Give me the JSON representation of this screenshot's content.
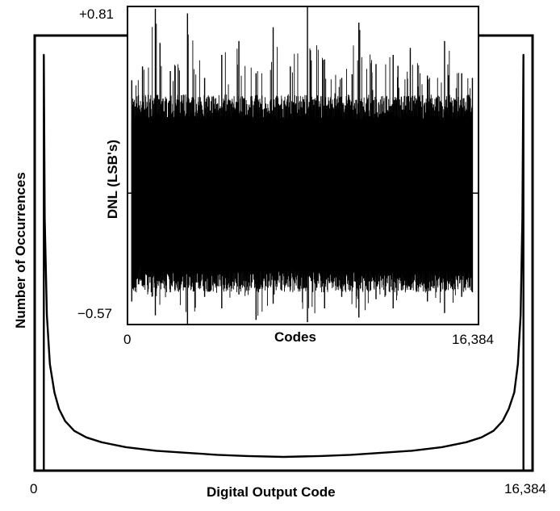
{
  "chart_data": [
    {
      "type": "line",
      "title": "",
      "xlabel": "Digital Output Code",
      "ylabel": "Number of Occurrences",
      "x_tick_labels": [
        "0",
        "16,384"
      ],
      "xlim": [
        0,
        16384
      ],
      "grid": false,
      "legend": "none",
      "series": [
        {
          "x": [
            300,
            330,
            400,
            500,
            650,
            800,
            1000,
            1300,
            1700,
            2200,
            3000,
            4000,
            5000,
            6000,
            7000,
            8192,
            9400,
            10400,
            11400,
            12400,
            13400,
            14200,
            14700,
            15100,
            15400,
            15600,
            15780,
            15900,
            15990,
            16050,
            16084
          ],
          "y": [
            1.0,
            0.6,
            0.36,
            0.24,
            0.17,
            0.13,
            0.1,
            0.076,
            0.06,
            0.048,
            0.036,
            0.027,
            0.022,
            0.017,
            0.014,
            0.012,
            0.014,
            0.017,
            0.022,
            0.027,
            0.036,
            0.048,
            0.06,
            0.076,
            0.1,
            0.13,
            0.17,
            0.24,
            0.36,
            0.6,
            1.0
          ]
        }
      ]
    },
    {
      "type": "line",
      "title": "",
      "xlabel": "Codes",
      "ylabel": "DNL (LSB's)",
      "x_tick_labels": [
        "0",
        "16,384"
      ],
      "y_tick_labels": [
        "+0.81",
        "−0.57"
      ],
      "xlim": [
        0,
        16384
      ],
      "ylim": [
        -0.57,
        0.81
      ],
      "grid": false,
      "legend": "none",
      "series": [
        {
          "x": [
            200,
            700,
            1300,
            2000,
            2800,
            3600,
            4400,
            5200,
            6000,
            6800,
            7600,
            8400,
            9200,
            10000,
            10800,
            11600,
            12400,
            13200,
            14000,
            14800,
            15600,
            16100
          ],
          "y": [
            0.49,
            0.55,
            0.8,
            0.53,
            0.78,
            0.5,
            0.6,
            0.66,
            0.52,
            0.72,
            0.55,
            0.81,
            0.58,
            0.5,
            0.74,
            0.56,
            0.6,
            0.63,
            0.51,
            0.66,
            0.52,
            0.5
          ]
        },
        {
          "x": [
            200,
            700,
            1300,
            2000,
            2800,
            3600,
            4400,
            5200,
            6000,
            6800,
            7600,
            8400,
            9200,
            10000,
            10800,
            11600,
            12400,
            13200,
            14000,
            14800,
            15600,
            16100
          ],
          "y": [
            -0.47,
            -0.4,
            -0.53,
            -0.43,
            -0.57,
            -0.45,
            -0.5,
            -0.44,
            -0.55,
            -0.48,
            -0.42,
            -0.56,
            -0.5,
            -0.45,
            -0.54,
            -0.46,
            -0.5,
            -0.42,
            -0.47,
            -0.52,
            -0.45,
            -0.43
          ]
        }
      ]
    }
  ]
}
